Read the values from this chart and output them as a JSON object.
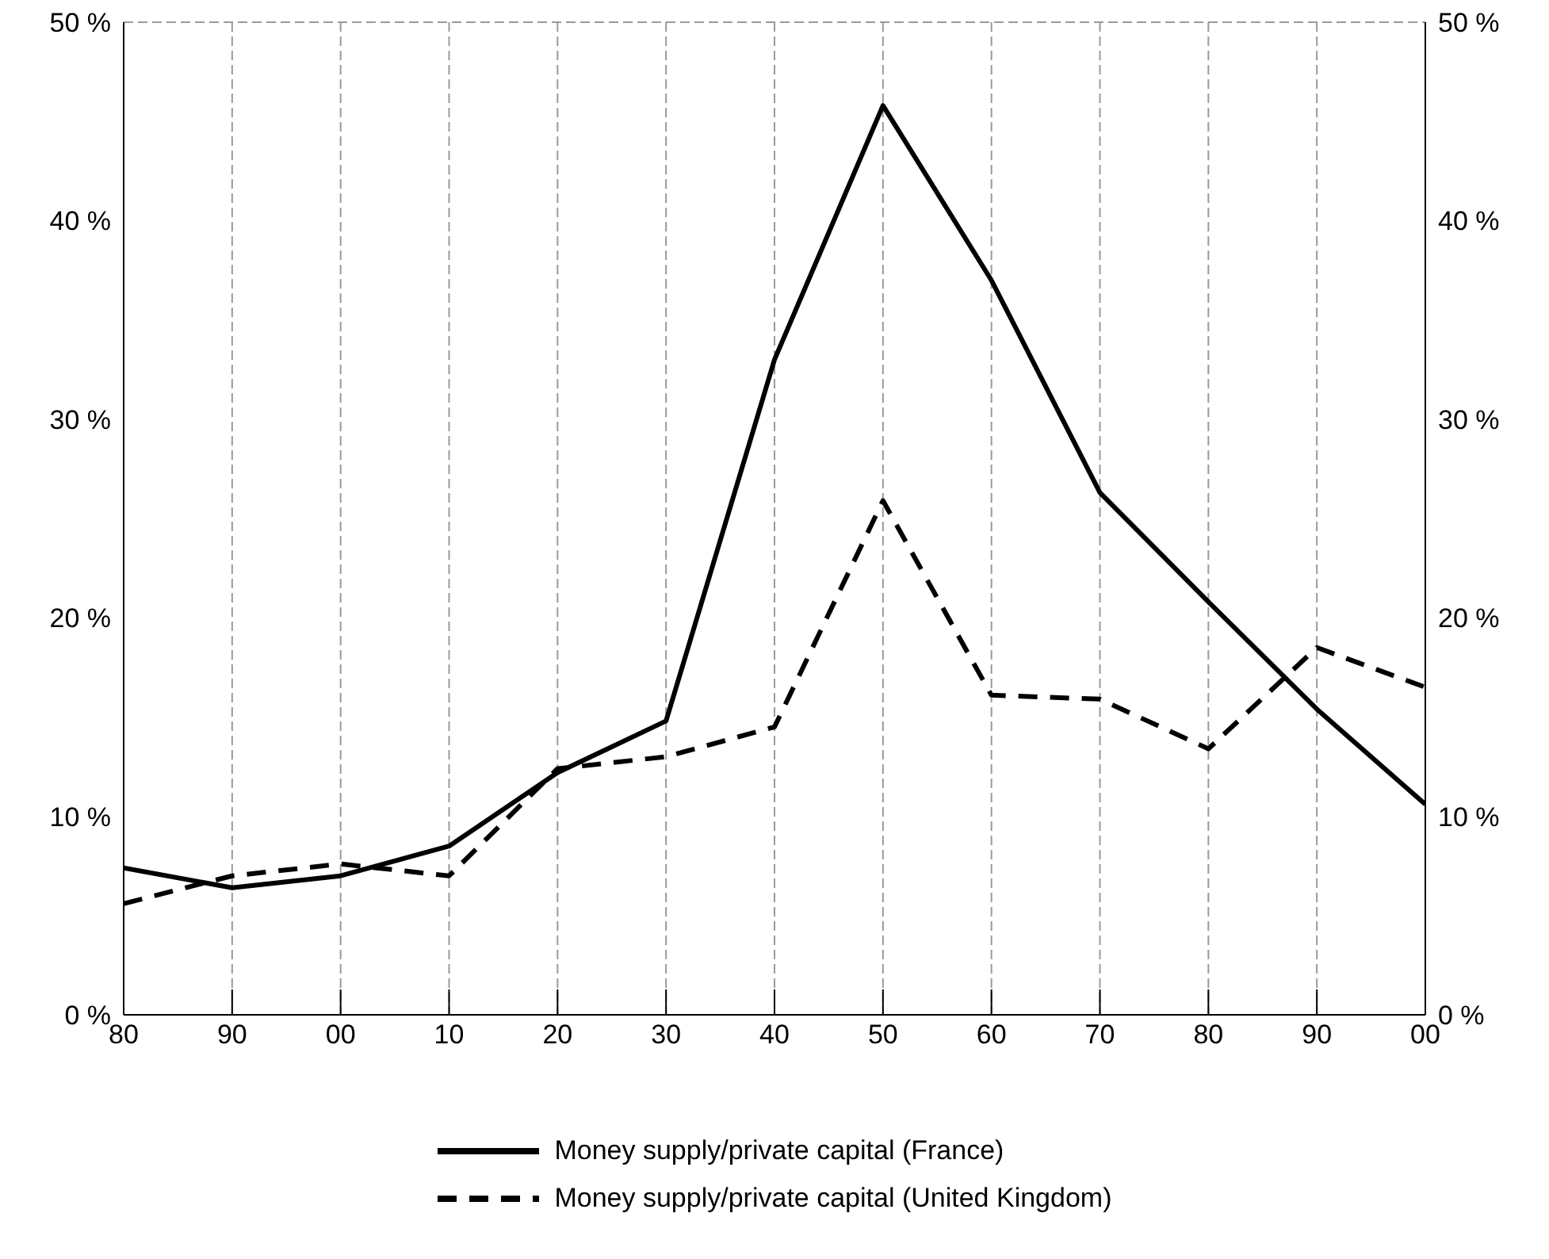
{
  "chart_data": {
    "type": "line",
    "categories": [
      "80",
      "90",
      "00",
      "10",
      "20",
      "30",
      "40",
      "50",
      "60",
      "70",
      "80",
      "90",
      "00"
    ],
    "series": [
      {
        "name": "Money supply/private capital (France)",
        "color": "#000000",
        "line_style": "solid",
        "values": [
          7.4,
          6.4,
          7.0,
          8.5,
          12.2,
          14.8,
          33,
          45.8,
          37,
          26.3,
          20.8,
          15.4,
          10.6
        ]
      },
      {
        "name": "Money supply/private capital (United Kingdom)",
        "color": "#000000",
        "line_style": "dashed",
        "values": [
          5.6,
          7.0,
          7.6,
          7.0,
          12.4,
          13.0,
          14.5,
          25.9,
          16.1,
          15.9,
          13.4,
          18.5,
          16.5
        ]
      }
    ],
    "ylim": [
      0,
      50
    ],
    "yticks": [
      {
        "value": 0,
        "label": "0 %"
      },
      {
        "value": 10,
        "label": "10 %"
      },
      {
        "value": 20,
        "label": "20 %"
      },
      {
        "value": 30,
        "label": "30 %"
      },
      {
        "value": 40,
        "label": "40 %"
      },
      {
        "value": 50,
        "label": "50 %"
      }
    ],
    "y2lim": [
      0,
      50
    ],
    "y2ticks": [
      {
        "value": 0,
        "label": "0 %"
      },
      {
        "value": 10,
        "label": "10 %"
      },
      {
        "value": 20,
        "label": "20 %"
      },
      {
        "value": 30,
        "label": "30 %"
      },
      {
        "value": 40,
        "label": "40 %"
      },
      {
        "value": 50,
        "label": "50 %"
      }
    ],
    "grid": true,
    "legend": "bottom",
    "marker": "none"
  }
}
